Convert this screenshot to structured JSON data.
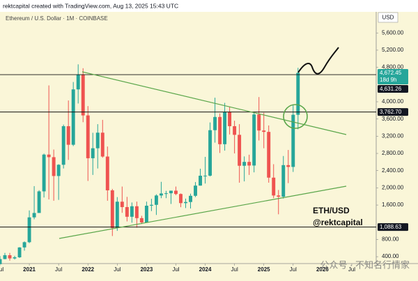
{
  "chart_data": {
    "type": "candlestick",
    "title": "rektcapital created with TradingView.com, Aug 13, 2025 15:43 UTC",
    "subtitle": "Ethereum / U.S. Dollar · 1M · COINBASE",
    "currency": "USD",
    "annotations": [
      "ETH/USD",
      "@rektcapital"
    ],
    "watermark": "公众号 · 不知名行情家",
    "up_color": "#26a69a",
    "down_color": "#ef5350",
    "x": [
      "2020-07",
      "2020-08",
      "2020-09",
      "2020-10",
      "2020-11",
      "2020-12",
      "2021-01",
      "2021-02",
      "2021-03",
      "2021-04",
      "2021-05",
      "2021-06",
      "2021-07",
      "2021-08",
      "2021-09",
      "2021-10",
      "2021-11",
      "2021-12",
      "2022-01",
      "2022-02",
      "2022-03",
      "2022-04",
      "2022-05",
      "2022-06",
      "2022-07",
      "2022-08",
      "2022-09",
      "2022-10",
      "2022-11",
      "2022-12",
      "2023-01",
      "2023-02",
      "2023-03",
      "2023-04",
      "2023-05",
      "2023-06",
      "2023-07",
      "2023-08",
      "2023-09",
      "2023-10",
      "2023-11",
      "2023-12",
      "2024-01",
      "2024-02",
      "2024-03",
      "2024-04",
      "2024-05",
      "2024-06",
      "2024-07",
      "2024-08",
      "2024-09",
      "2024-10",
      "2024-11",
      "2024-12",
      "2025-01",
      "2025-02",
      "2025-03",
      "2025-04",
      "2025-05",
      "2025-06",
      "2025-07",
      "2025-08"
    ],
    "open": [
      226,
      345,
      434,
      360,
      386,
      615,
      737,
      1314,
      1416,
      1918,
      2773,
      2713,
      2275,
      2536,
      3433,
      3001,
      4288,
      4631,
      3683,
      2688,
      2920,
      3282,
      2727,
      1942,
      1067,
      1678,
      1553,
      1328,
      1572,
      1296,
      1196,
      1585,
      1605,
      1822,
      1869,
      1874,
      1934,
      1857,
      1645,
      1671,
      1815,
      2052,
      2282,
      2283,
      3340,
      3647,
      3014,
      3763,
      3433,
      3232,
      2513,
      2603,
      2518,
      3705,
      3332,
      3300,
      2237,
      1822,
      1794,
      2528,
      2486,
      3698
    ],
    "high": [
      415,
      488,
      488,
      420,
      622,
      755,
      1475,
      2040,
      1945,
      2795,
      4380,
      2890,
      2550,
      3470,
      4030,
      4460,
      4870,
      4780,
      3900,
      3280,
      3480,
      3580,
      2960,
      1975,
      1785,
      2030,
      1790,
      1660,
      1680,
      1350,
      1680,
      1745,
      1850,
      2140,
      1930,
      1930,
      2030,
      1870,
      1750,
      1865,
      2135,
      2445,
      2720,
      3520,
      4095,
      3730,
      3975,
      3890,
      3560,
      3480,
      2730,
      2770,
      3740,
      4110,
      3745,
      3450,
      2550,
      1950,
      2740,
      2880,
      3940,
      4790
    ],
    "low": [
      225,
      340,
      308,
      335,
      370,
      540,
      715,
      1270,
      1435,
      1775,
      1730,
      1700,
      1720,
      2450,
      2650,
      2970,
      3960,
      3525,
      2160,
      2300,
      2450,
      2700,
      1700,
      880,
      1000,
      1420,
      1220,
      1190,
      1075,
      1160,
      1190,
      1460,
      1370,
      1760,
      1760,
      1625,
      1830,
      1550,
      1530,
      1520,
      1785,
      2050,
      2100,
      2265,
      3050,
      2810,
      2865,
      3240,
      2800,
      2120,
      2150,
      2300,
      2360,
      3100,
      2920,
      2120,
      1760,
      1385,
      1750,
      2110,
      2370,
      3360
    ],
    "close": [
      345,
      434,
      360,
      386,
      615,
      737,
      1314,
      1416,
      1918,
      2773,
      2713,
      2275,
      2536,
      3433,
      3001,
      4288,
      4631,
      3683,
      2688,
      2920,
      3282,
      2727,
      1942,
      1067,
      1678,
      1553,
      1328,
      1572,
      1296,
      1196,
      1585,
      1605,
      1822,
      1869,
      1874,
      1934,
      1857,
      1645,
      1671,
      1815,
      2052,
      2282,
      2283,
      3340,
      3647,
      3014,
      3763,
      3433,
      3232,
      2513,
      2603,
      2518,
      3705,
      3332,
      3300,
      2237,
      1822,
      1794,
      2528,
      2486,
      3698,
      4672.45
    ],
    "xlim": [
      "2020-07",
      "2026-12"
    ],
    "xticks": [
      {
        "value": "2020-07",
        "label": "Jul"
      },
      {
        "value": "2021-01",
        "label": "2021"
      },
      {
        "value": "2021-07",
        "label": "Jul"
      },
      {
        "value": "2022-01",
        "label": "2022"
      },
      {
        "value": "2022-07",
        "label": "Jul"
      },
      {
        "value": "2023-01",
        "label": "2023"
      },
      {
        "value": "2023-07",
        "label": "Jul"
      },
      {
        "value": "2024-01",
        "label": "2024"
      },
      {
        "value": "2024-07",
        "label": "Jul"
      },
      {
        "value": "2025-01",
        "label": "2025"
      },
      {
        "value": "2025-07",
        "label": "Jul"
      },
      {
        "value": "2026-01",
        "label": "2026"
      },
      {
        "value": "2026-07",
        "label": "Jul"
      }
    ],
    "ylim": [
      240,
      6090
    ],
    "yticks": [
      {
        "value": 400,
        "label": "400.00"
      },
      {
        "value": 800,
        "label": "800.00"
      },
      {
        "value": 1600,
        "label": "1,600.00"
      },
      {
        "value": 2000,
        "label": "2,000.00"
      },
      {
        "value": 2400,
        "label": "2,400.00"
      },
      {
        "value": 2800,
        "label": "2,800.00"
      },
      {
        "value": 3200,
        "label": "3,200.00"
      },
      {
        "value": 3600,
        "label": "3,600.00"
      },
      {
        "value": 4000,
        "label": "4,000.00"
      },
      {
        "value": 4800,
        "label": "4,800.00"
      },
      {
        "value": 5200,
        "label": "5,200.00"
      },
      {
        "value": 5600,
        "label": "5,600.00"
      }
    ],
    "price_labels": [
      {
        "value": 4672.45,
        "label": "4,672.45",
        "sub": "18d 9h",
        "color": "#26a69a"
      },
      {
        "value": 4631.26,
        "label": "4,631.26",
        "color": "#131722",
        "line": true
      },
      {
        "value": 3762.7,
        "label": "3,762.70",
        "color": "#131722",
        "line": true
      },
      {
        "value": 1088.63,
        "label": "1,088.63",
        "color": "#131722",
        "line": true
      }
    ]
  }
}
